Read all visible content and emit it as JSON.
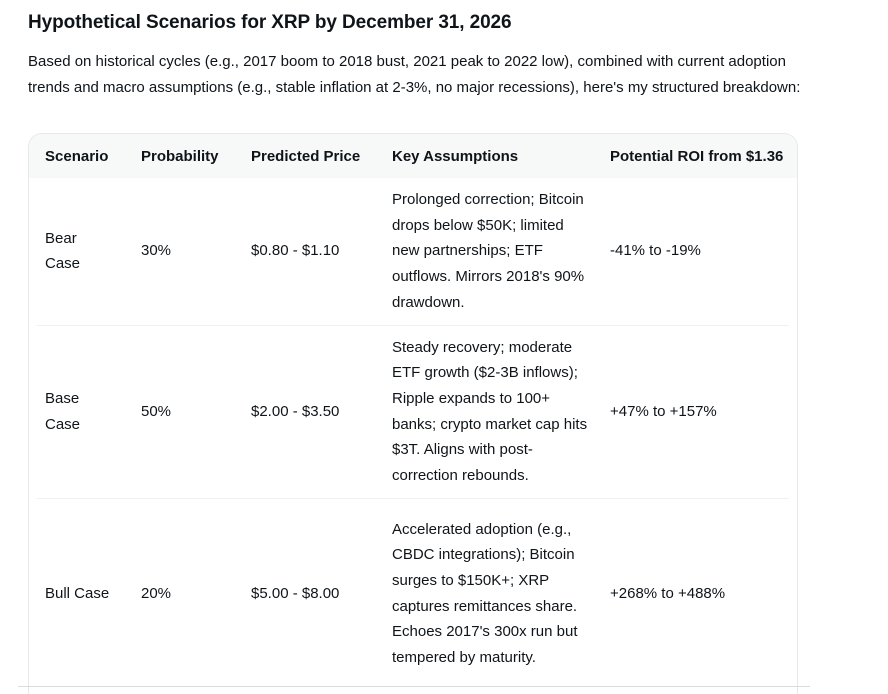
{
  "title": "Hypothetical Scenarios for XRP by December 31, 2026",
  "intro": "Based on historical cycles (e.g., 2017 boom to 2018 bust, 2021 peak to 2022 low), combined with current adoption trends and macro assumptions (e.g., stable inflation at 2-3%, no major recessions), here's my structured breakdown:",
  "table": {
    "headers": {
      "scenario": "Scenario",
      "probability": "Probability",
      "price": "Predicted Price",
      "assumptions": "Key Assumptions",
      "roi": "Potential ROI from $1.36"
    },
    "rows": [
      {
        "scenario_line1": "Bear",
        "scenario_line2": "Case",
        "probability": "30%",
        "price": "$0.80 - $1.10",
        "assumptions": "Prolonged correction; Bitcoin drops below $50K; limited new partnerships; ETF outflows. Mirrors 2018's 90% drawdown.",
        "roi": "-41% to -19%"
      },
      {
        "scenario_line1": "Base",
        "scenario_line2": "Case",
        "probability": "50%",
        "price": "$2.00 - $3.50",
        "assumptions": "Steady recovery; moderate ETF growth ($2-3B inflows); Ripple expands to 100+ banks; crypto market cap hits $3T. Aligns with post-correction rebounds.",
        "roi": "+47% to +157%"
      },
      {
        "scenario_line1": "Bull Case",
        "scenario_line2": "",
        "probability": "20%",
        "price": "$5.00 - $8.00",
        "assumptions": "Accelerated adoption (e.g., CBDC integrations); Bitcoin surges to $150K+; XRP captures remittances share. Echoes 2017's 300x run but tempered by maturity.",
        "roi": "+268% to +488%"
      }
    ]
  },
  "colors": {
    "text": "#0f1419",
    "header_bg": "#f7f9f9",
    "border": "#e6e8ea",
    "divider": "#eff1f3"
  }
}
